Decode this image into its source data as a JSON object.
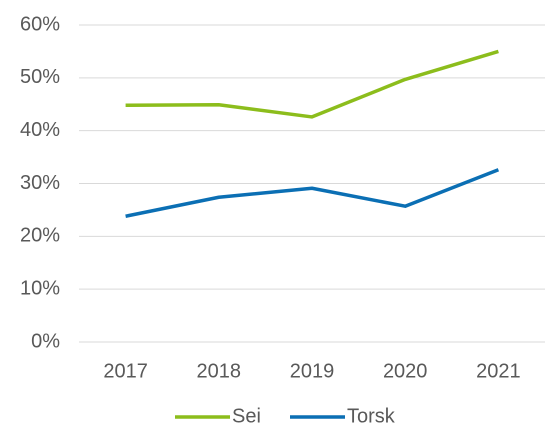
{
  "chart_data": {
    "type": "line",
    "categories": [
      "2017",
      "2018",
      "2019",
      "2020",
      "2021"
    ],
    "series": [
      {
        "name": "Sei",
        "color": "#8cbd1c",
        "values": [
          44.8,
          44.9,
          42.6,
          49.7,
          55.0
        ]
      },
      {
        "name": "Torsk",
        "color": "#0b6fb4",
        "values": [
          23.8,
          27.4,
          29.1,
          25.7,
          32.6
        ]
      }
    ],
    "ylim": [
      0,
      60
    ],
    "yticks": [
      {
        "value": 0,
        "label": "0%"
      },
      {
        "value": 10,
        "label": "10%"
      },
      {
        "value": 20,
        "label": "20%"
      },
      {
        "value": 30,
        "label": "30%"
      },
      {
        "value": 40,
        "label": "40%"
      },
      {
        "value": 50,
        "label": "50%"
      },
      {
        "value": 60,
        "label": "60%"
      }
    ],
    "grid": true,
    "legend": "bottom"
  }
}
